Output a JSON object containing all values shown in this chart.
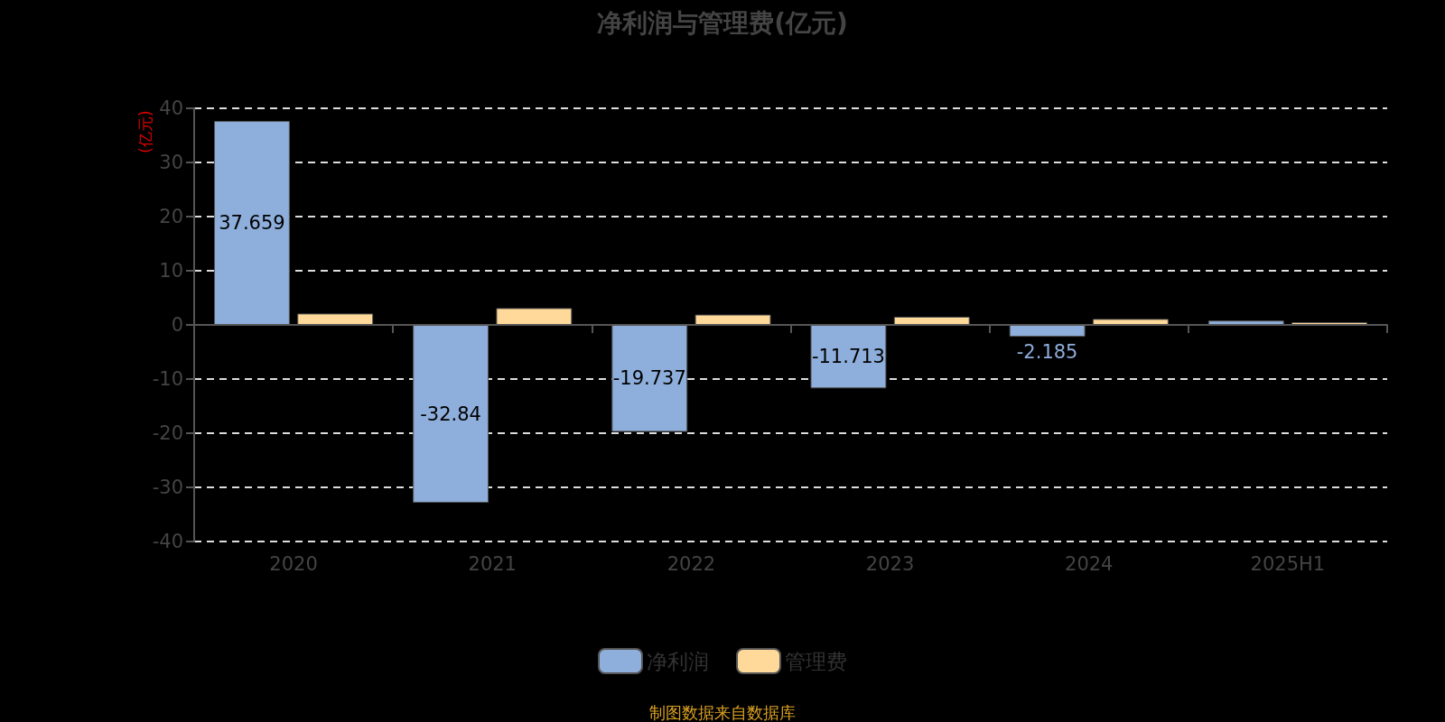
{
  "chart_data": {
    "type": "bar",
    "title": "净利润与管理费(亿元)",
    "ylabel": "(亿元)",
    "categories": [
      "2020",
      "2021",
      "2022",
      "2023",
      "2024",
      "2025H1"
    ],
    "series": [
      {
        "name": "净利润",
        "color": "#8eaedb",
        "values": [
          37.659,
          -32.84,
          -19.737,
          -11.713,
          -2.185,
          0.8
        ],
        "value_labels": [
          "37.659",
          "-32.84",
          "-19.737",
          "-11.713",
          "-2.185",
          null
        ]
      },
      {
        "name": "管理费",
        "color": "#ffd999",
        "values": [
          2.1,
          3.1,
          1.9,
          1.5,
          1.1,
          0.5
        ]
      }
    ],
    "ylim": [
      -40,
      40
    ],
    "yticks": [
      -40,
      -30,
      -20,
      -10,
      0,
      10,
      20,
      30,
      40
    ],
    "grid": "y",
    "legend": "bottom",
    "annotations": [
      "制图数据来自数据库"
    ]
  }
}
